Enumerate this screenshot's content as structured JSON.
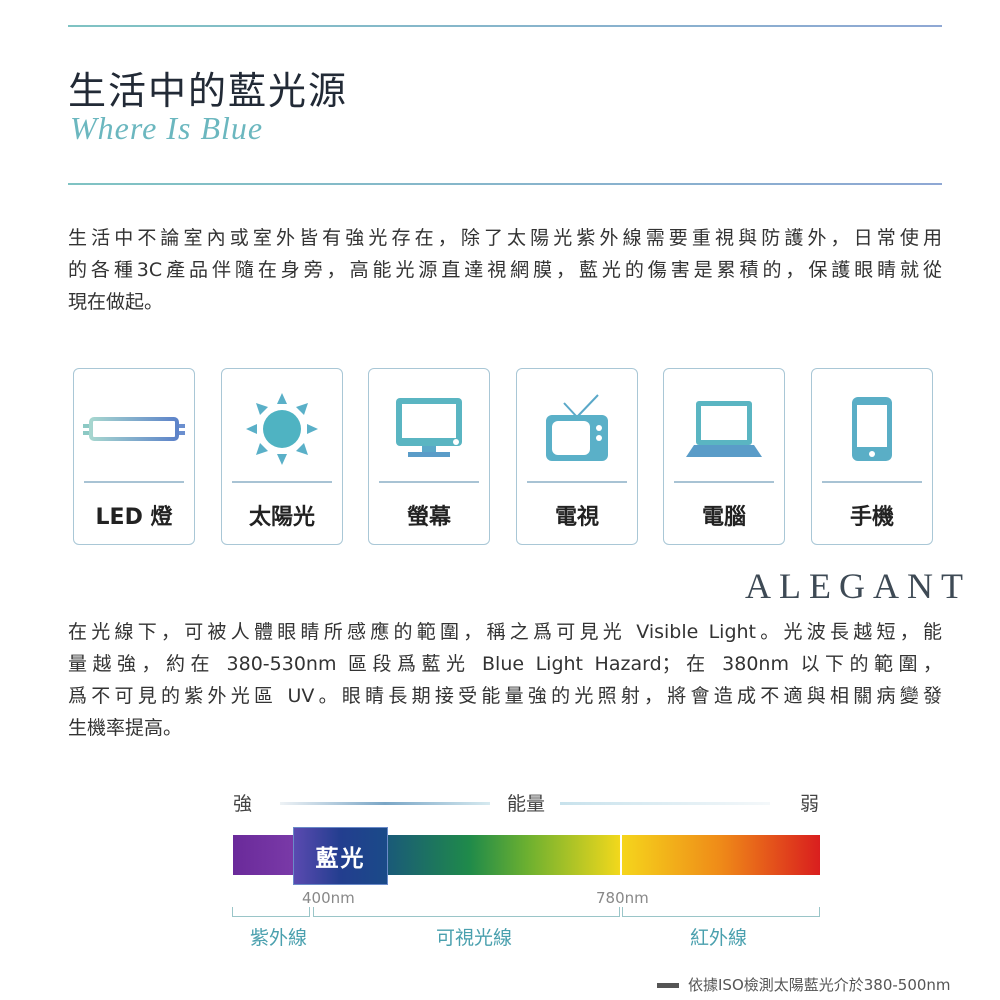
{
  "header": {
    "title": "生活中的藍光源",
    "subtitle": "Where Is Blue"
  },
  "intro": [
    "生活中不論室內或室外皆有強光存在，除了太陽光紫外線需要重視與防護外，日常使用",
    "的各種3C產品伴隨在身旁，高能光源直達視網膜，藍光的傷害是累積的，保護眼睛就從",
    "現在做起。"
  ],
  "sources": [
    {
      "label": "LED 燈",
      "icon": "led-tube-icon"
    },
    {
      "label": "太陽光",
      "icon": "sun-icon"
    },
    {
      "label": "螢幕",
      "icon": "monitor-icon"
    },
    {
      "label": "電視",
      "icon": "tv-icon"
    },
    {
      "label": "電腦",
      "icon": "laptop-icon"
    },
    {
      "label": "手機",
      "icon": "phone-icon"
    }
  ],
  "brand": "ALEGANT",
  "body": [
    "在光線下，可被人體眼睛所感應的範圍，稱之爲可見光 Visible Light。光波長越短，能",
    "量越強，約在 380-530nm 區段爲藍光 Blue Light Hazard；在 380nm 以下的範圍，",
    "爲不可見的紫外光區 UV。眼睛長期接受能量強的光照射，將會造成不適與相關病變發",
    "生機率提高。"
  ],
  "spectrum": {
    "strong": "強",
    "energy": "能量",
    "weak": "弱",
    "blue_label": "藍光",
    "tick_400": "400nm",
    "tick_780": "780nm",
    "uv": "紫外線",
    "visible": "可視光線",
    "ir": "紅外線",
    "colors": {
      "uv": "#6a2a9a",
      "blue": "#233e8f",
      "green": "#1f8a4a",
      "yellow": "#f2d81c",
      "red": "#d91e1e"
    }
  },
  "footnote": "依據ISO檢測太陽藍光介於380-500nm"
}
